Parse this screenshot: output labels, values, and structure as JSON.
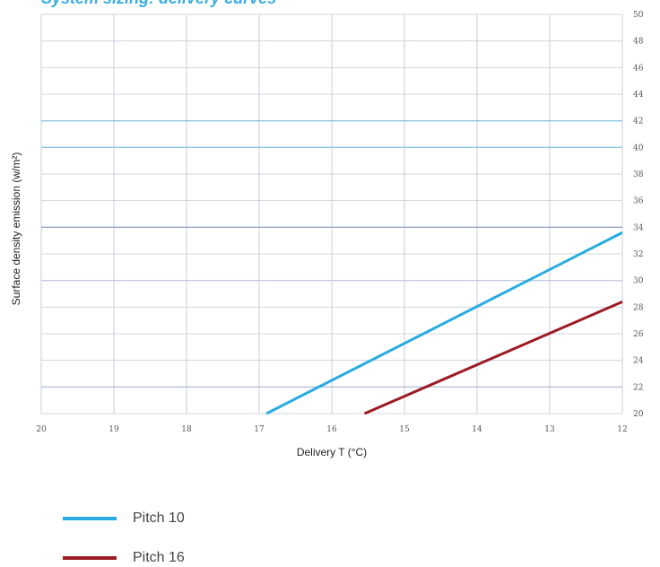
{
  "title": "System sizing: delivery curves",
  "chart_data": {
    "type": "line",
    "xlabel": "Delivery T (°C)",
    "ylabel": "Surface density emission (w/m²)",
    "xlim": [
      20,
      12
    ],
    "ylim": [
      20,
      50
    ],
    "x_ticks": [
      "20",
      "19",
      "18",
      "17",
      "16",
      "15",
      "14",
      "13",
      "12"
    ],
    "y_ticks": [
      "20",
      "22",
      "24",
      "26",
      "28",
      "30",
      "32",
      "34",
      "36",
      "38",
      "40",
      "42",
      "44",
      "46",
      "48",
      "50"
    ],
    "y_axis_side": "right",
    "grid": true,
    "series": [
      {
        "name": "Pitch 10",
        "color": "#29abe2",
        "x": [
          16.9,
          12
        ],
        "y": [
          20,
          33.6
        ]
      },
      {
        "name": "Pitch 16",
        "color": "#9b1c24",
        "x": [
          15.55,
          12
        ],
        "y": [
          20,
          28.4
        ]
      }
    ],
    "legend_placement": "bottom-left"
  }
}
